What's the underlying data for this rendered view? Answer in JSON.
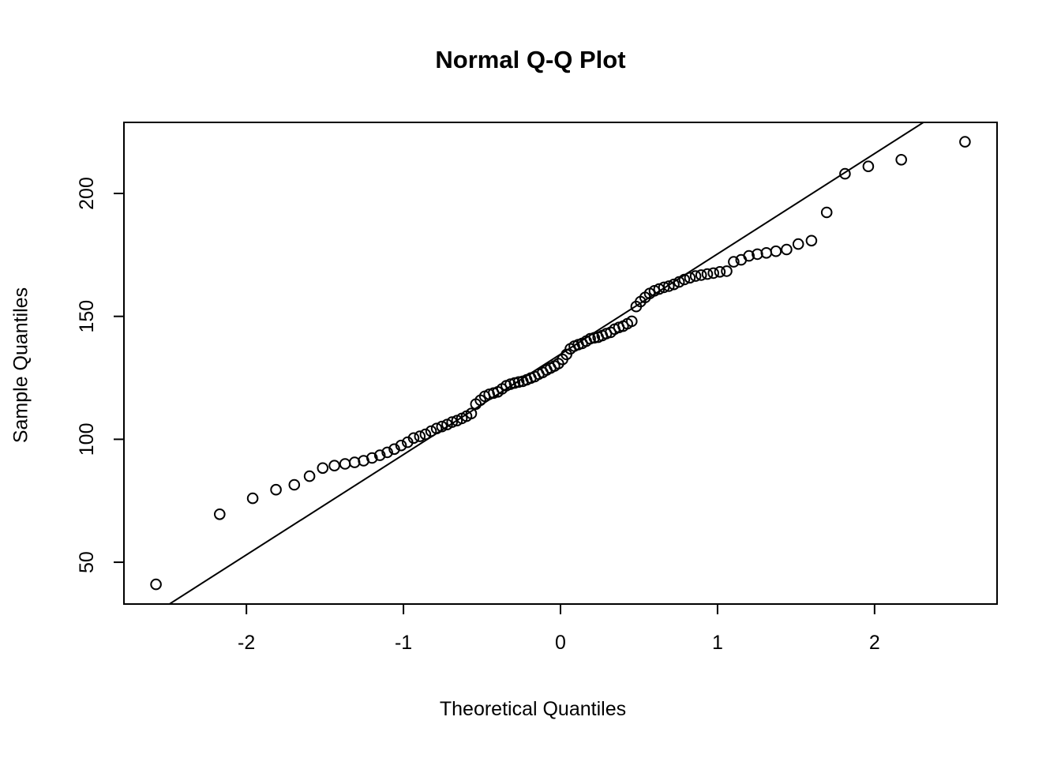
{
  "title": "Normal Q-Q Plot",
  "chart_data": {
    "type": "scatter",
    "title": "Normal Q-Q Plot",
    "xlabel": "Theoretical Quantiles",
    "ylabel": "Sample Quantiles",
    "xlim": [
      -2.78,
      2.78
    ],
    "ylim": [
      33,
      228.9
    ],
    "x_ticks": [
      -2,
      -1,
      0,
      1,
      2
    ],
    "y_ticks": [
      50,
      100,
      150,
      200
    ],
    "grid": false,
    "legend": null,
    "marker": "open-circle",
    "n_points": 100,
    "colors": {
      "points": "#000000",
      "line": "#000000",
      "background": "#ffffff",
      "text": "#000000"
    },
    "points": {
      "x": [
        -2.576,
        -2.17,
        -1.96,
        -1.812,
        -1.695,
        -1.598,
        -1.514,
        -1.44,
        -1.372,
        -1.311,
        -1.254,
        -1.2,
        -1.15,
        -1.103,
        -1.058,
        -1.015,
        -0.974,
        -0.935,
        -0.896,
        -0.86,
        -0.824,
        -0.789,
        -0.755,
        -0.722,
        -0.69,
        -0.659,
        -0.628,
        -0.598,
        -0.568,
        -0.539,
        -0.51,
        -0.482,
        -0.454,
        -0.426,
        -0.399,
        -0.372,
        -0.345,
        -0.319,
        -0.292,
        -0.266,
        -0.24,
        -0.215,
        -0.189,
        -0.164,
        -0.138,
        -0.113,
        -0.088,
        -0.063,
        -0.038,
        -0.013,
        0.013,
        0.038,
        0.063,
        0.088,
        0.113,
        0.138,
        0.164,
        0.189,
        0.215,
        0.24,
        0.266,
        0.292,
        0.319,
        0.345,
        0.372,
        0.399,
        0.426,
        0.454,
        0.482,
        0.51,
        0.539,
        0.568,
        0.598,
        0.628,
        0.659,
        0.69,
        0.722,
        0.755,
        0.789,
        0.824,
        0.86,
        0.896,
        0.935,
        0.974,
        1.015,
        1.058,
        1.103,
        1.15,
        1.2,
        1.254,
        1.311,
        1.372,
        1.44,
        1.514,
        1.598,
        1.695,
        1.812,
        1.96,
        2.17,
        2.576
      ],
      "y": [
        41,
        69.5,
        76,
        79.5,
        81.5,
        85,
        88.3,
        89.3,
        90,
        90.6,
        91.3,
        92.4,
        93.5,
        94.7,
        96,
        97.5,
        98.8,
        100.5,
        101.2,
        102,
        103.3,
        104.4,
        105.2,
        106,
        107,
        107.6,
        108.5,
        109.4,
        110.5,
        114.3,
        115.9,
        117.5,
        118.3,
        118.8,
        119.3,
        120.5,
        121.8,
        122.4,
        122.9,
        123.3,
        123.6,
        124.2,
        124.9,
        125.5,
        126.5,
        127.2,
        128.2,
        129,
        129.8,
        130.8,
        132.5,
        134.5,
        136.8,
        137.9,
        138.5,
        139,
        139.9,
        140.9,
        141.3,
        141.5,
        142.2,
        143,
        143.5,
        144.8,
        145.5,
        146,
        147,
        148,
        154,
        156,
        157.7,
        159.3,
        160.4,
        161.1,
        161.8,
        162.3,
        163,
        164,
        165,
        165.7,
        166.4,
        166.8,
        167.2,
        167.6,
        168.1,
        168.4,
        172.2,
        173,
        174.6,
        175.3,
        175.8,
        176.5,
        177.2,
        179.4,
        180.8,
        192.3,
        208,
        211,
        213.7,
        221
      ]
    },
    "reference_line": {
      "name": "qqline",
      "intercept": 134.6,
      "slope": 40.8
    }
  }
}
